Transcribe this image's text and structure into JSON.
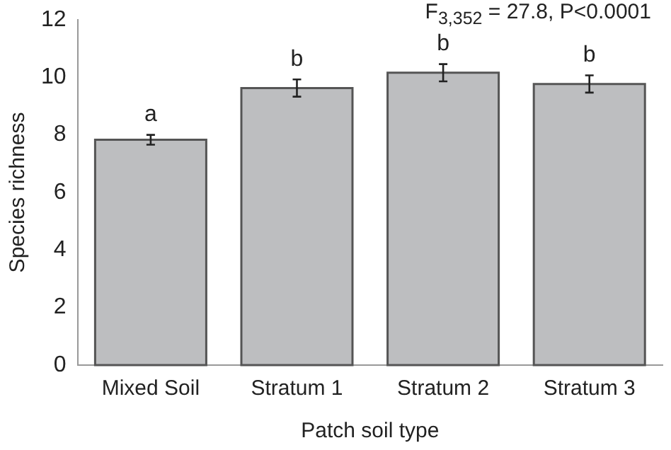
{
  "chart_data": {
    "type": "bar",
    "xlabel": "Patch soil type",
    "ylabel": "Species richness",
    "categories": [
      "Mixed Soil",
      "Stratum 1",
      "Stratum 2",
      "Stratum 3"
    ],
    "values": [
      7.83,
      9.63,
      10.16,
      9.77
    ],
    "errors": [
      0.17,
      0.3,
      0.3,
      0.3
    ],
    "color": "#bdbec0",
    "ylim": [
      0,
      12
    ],
    "yticks": [
      0,
      2,
      4,
      6,
      8,
      10,
      12
    ],
    "grid": false,
    "legend": false,
    "annotations": [
      "F$_{3,352}$ = 27.8, P<0.0001",
      {
        "text": "a",
        "x": "Mixed Soil",
        "y": 8.0
      },
      {
        "text": "b",
        "x": "Stratum 1",
        "y": 9.93
      },
      {
        "text": "b",
        "x": "Stratum 2",
        "y": 10.46
      },
      {
        "text": "b",
        "x": "Stratum 3",
        "y": 10.07
      }
    ]
  }
}
